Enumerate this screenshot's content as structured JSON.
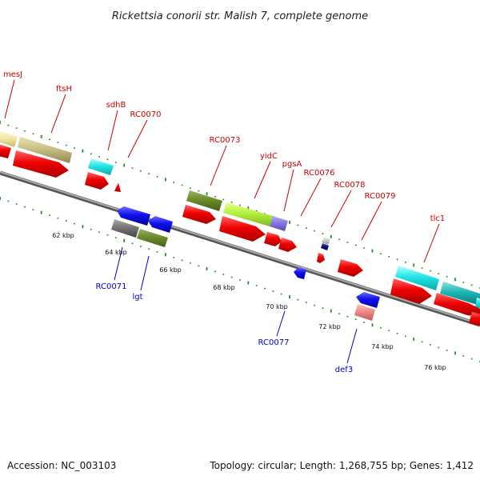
{
  "title": "Rickettsia conorii str. Malish 7, complete genome",
  "footer": {
    "accession": "Accession: NC_003103",
    "topology": "Topology: circular; Length: 1,268,755 bp; Genes: 1,412"
  },
  "colors": {
    "forward_label": "#cc0000",
    "reverse_label": "#0000cc",
    "backbone": "#888888",
    "tick": "#2a8a2a"
  },
  "forward_labels": [
    "mesJ",
    "ftsH",
    "sdhB",
    "RC0070",
    "RC0073",
    "yidC",
    "pgsA",
    "RC0076",
    "RC0078",
    "RC0079",
    "tlc1"
  ],
  "reverse_labels": [
    "RC0071",
    "lgt",
    "RC0077",
    "def3"
  ],
  "kbp_labels": [
    "62 kbp",
    "64 kbp",
    "66 kbp",
    "68 kbp",
    "70 kbp",
    "72 kbp",
    "74 kbp",
    "76 kbp"
  ]
}
